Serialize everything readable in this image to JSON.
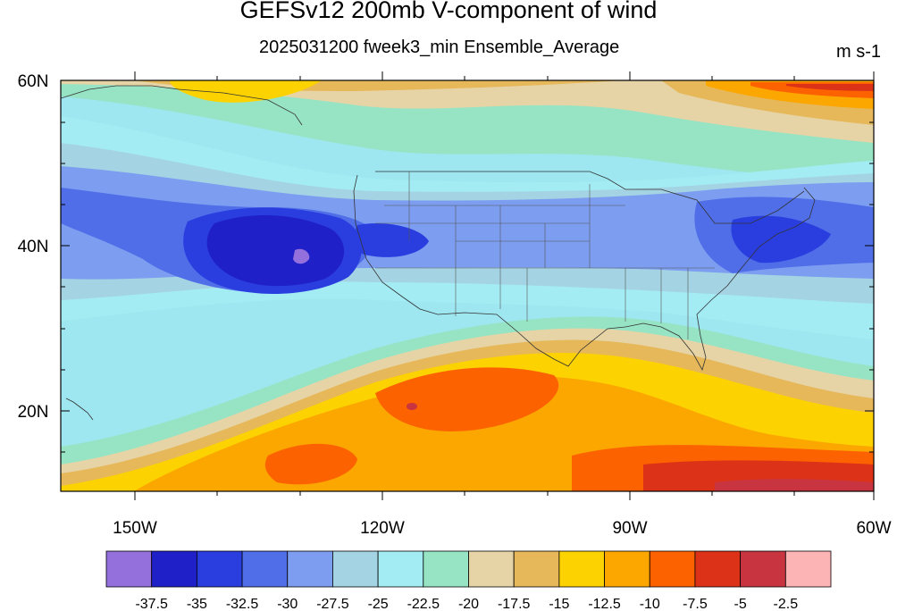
{
  "title": "GEFSv12 200mb V-component of wind",
  "subtitle": "2025031200 fweek3_min Ensemble_Average",
  "units": "m s-1",
  "map": {
    "lat_labels": [
      "60N",
      "40N",
      "20N"
    ],
    "lon_labels": [
      "150W",
      "120W",
      "90W",
      "60W"
    ]
  },
  "colorbar": {
    "colors": [
      "#9370db",
      "#2020c8",
      "#2a3ee0",
      "#4f6ee8",
      "#7d9ef0",
      "#a4d4e4",
      "#a4ecf4",
      "#96e4c4",
      "#e6d4a6",
      "#e6b85a",
      "#fcd200",
      "#fca600",
      "#fc6200",
      "#dc3218",
      "#c83440",
      "#fcb4b4"
    ],
    "labels": [
      "-37.5",
      "-35",
      "-32.5",
      "-30",
      "-27.5",
      "-25",
      "-22.5",
      "-20",
      "-17.5",
      "-15",
      "-12.5",
      "-10",
      "-7.5",
      "-5",
      "-2.5"
    ]
  }
}
